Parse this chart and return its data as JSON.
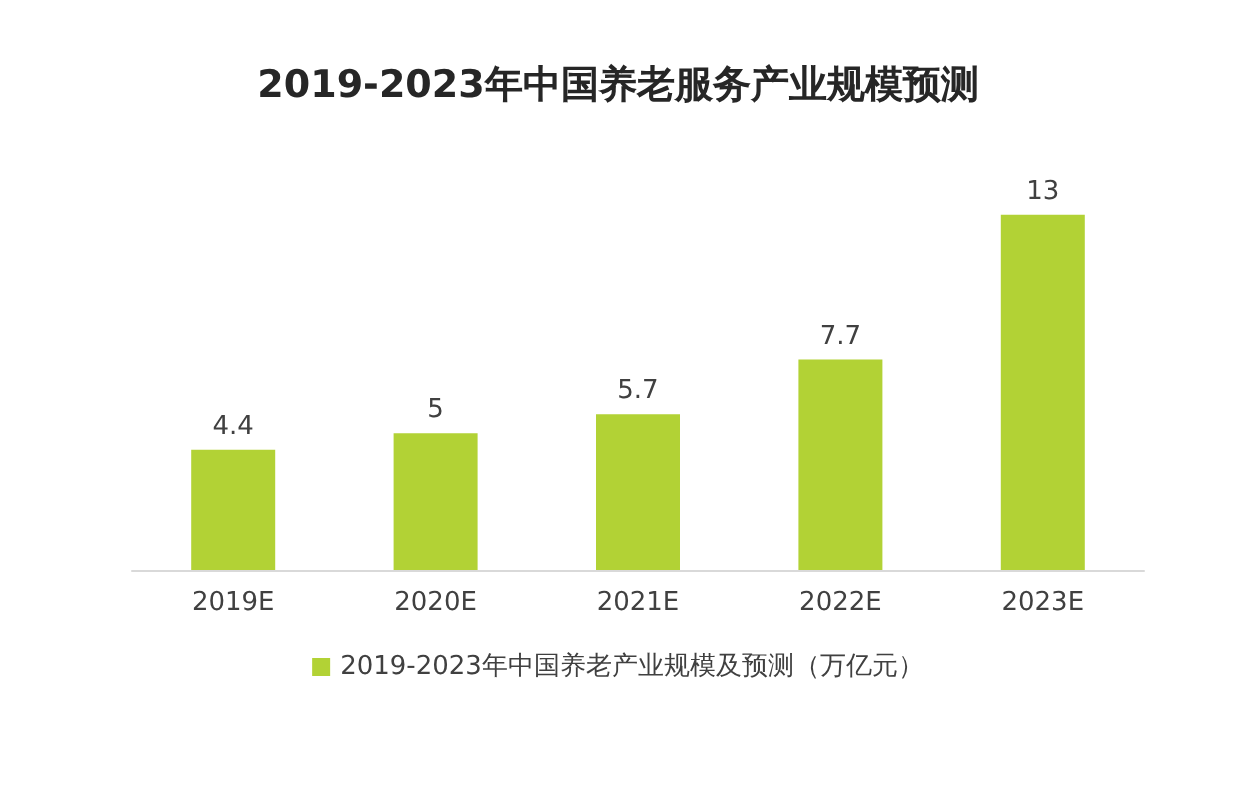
{
  "chart_data": {
    "type": "bar",
    "title": "2019-2023年中国养老服务产业规模预测",
    "categories": [
      "2019E",
      "2020E",
      "2021E",
      "2022E",
      "2023E"
    ],
    "series": [
      {
        "name": "2019-2023年中国养老产业规模及预测（万亿元）",
        "color": "#b2d235",
        "values": [
          4.4,
          5,
          5.7,
          7.7,
          13
        ]
      }
    ],
    "data_labels": true,
    "legend": "bottom",
    "grid": false,
    "tick_labels": "x"
  }
}
